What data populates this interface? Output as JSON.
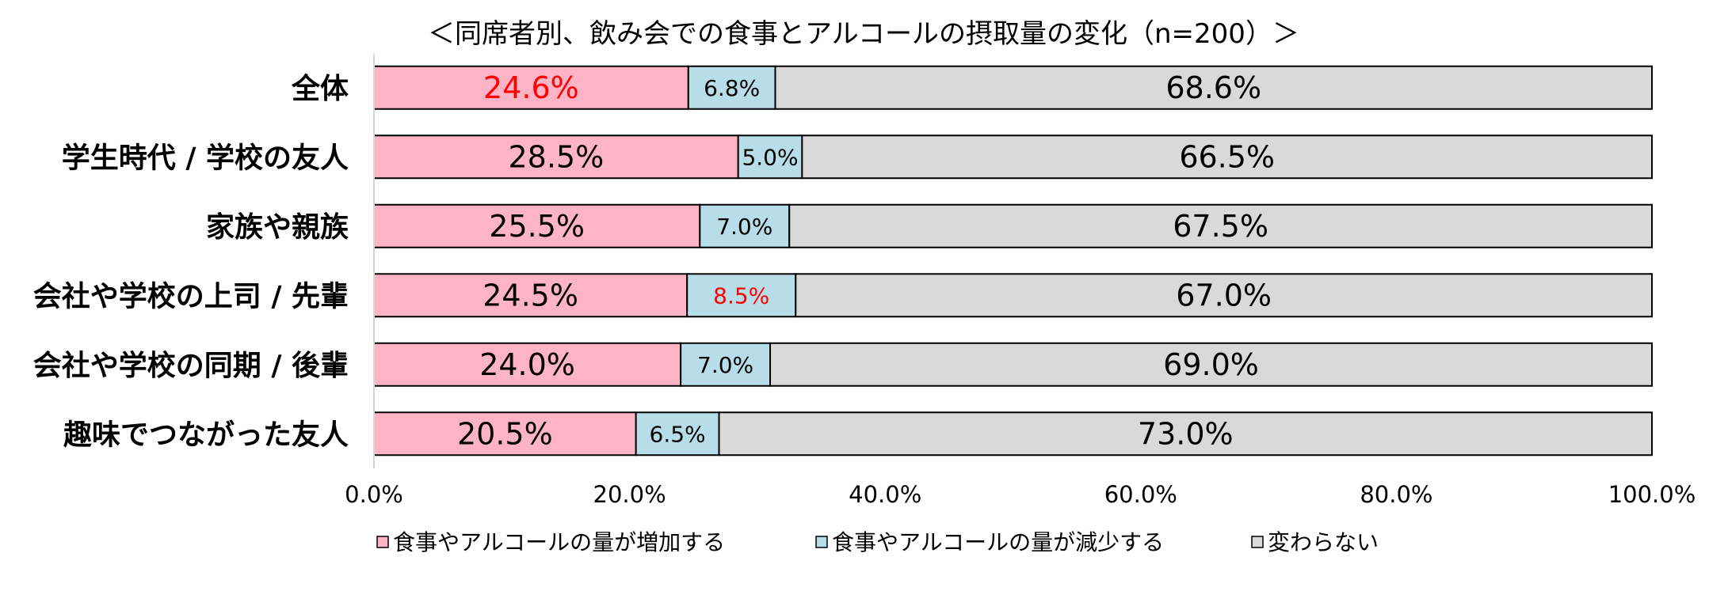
{
  "chart_data": {
    "type": "bar",
    "orientation": "horizontal",
    "stacked": true,
    "title": "＜同席者別、飲み会での食事とアルコールの摂取量の変化（n=200）＞",
    "categories": [
      "全体",
      "学生時代 / 学校の友人",
      "家族や親族",
      "会社や学校の上司 / 先輩",
      "会社や学校の同期 / 後輩",
      "趣味でつながった友人"
    ],
    "series": [
      {
        "name": "食事やアルコールの量が増加する",
        "color": "#ffb3c6",
        "values": [
          24.6,
          28.5,
          25.5,
          24.5,
          24.0,
          20.5
        ],
        "labels": [
          "24.6%",
          "28.5%",
          "25.5%",
          "24.5%",
          "24.0%",
          "20.5%"
        ]
      },
      {
        "name": "食事やアルコールの量が減少する",
        "color": "#b7dde8",
        "values": [
          6.8,
          5.0,
          7.0,
          8.5,
          7.0,
          6.5
        ],
        "labels": [
          "6.8%",
          "5.0%",
          "7.0%",
          "8.5%",
          "7.0%",
          "6.5%"
        ]
      },
      {
        "name": "変わらない",
        "color": "#d9d9d9",
        "values": [
          68.6,
          66.5,
          67.5,
          67.0,
          69.0,
          73.0
        ],
        "labels": [
          "68.6%",
          "66.5%",
          "67.5%",
          "67.0%",
          "69.0%",
          "73.0%"
        ]
      }
    ],
    "highlighted_labels": [
      {
        "series": 0,
        "category": 0,
        "color": "#ff0000"
      },
      {
        "series": 1,
        "category": 3,
        "color": "#ff0000"
      }
    ],
    "xlim": [
      0,
      100
    ],
    "xticks": [
      0,
      20,
      40,
      60,
      80,
      100
    ],
    "xtick_labels": [
      "0.0%",
      "20.0%",
      "40.0%",
      "60.0%",
      "80.0%",
      "100.0%"
    ],
    "grid": false,
    "legend_position": "bottom"
  }
}
